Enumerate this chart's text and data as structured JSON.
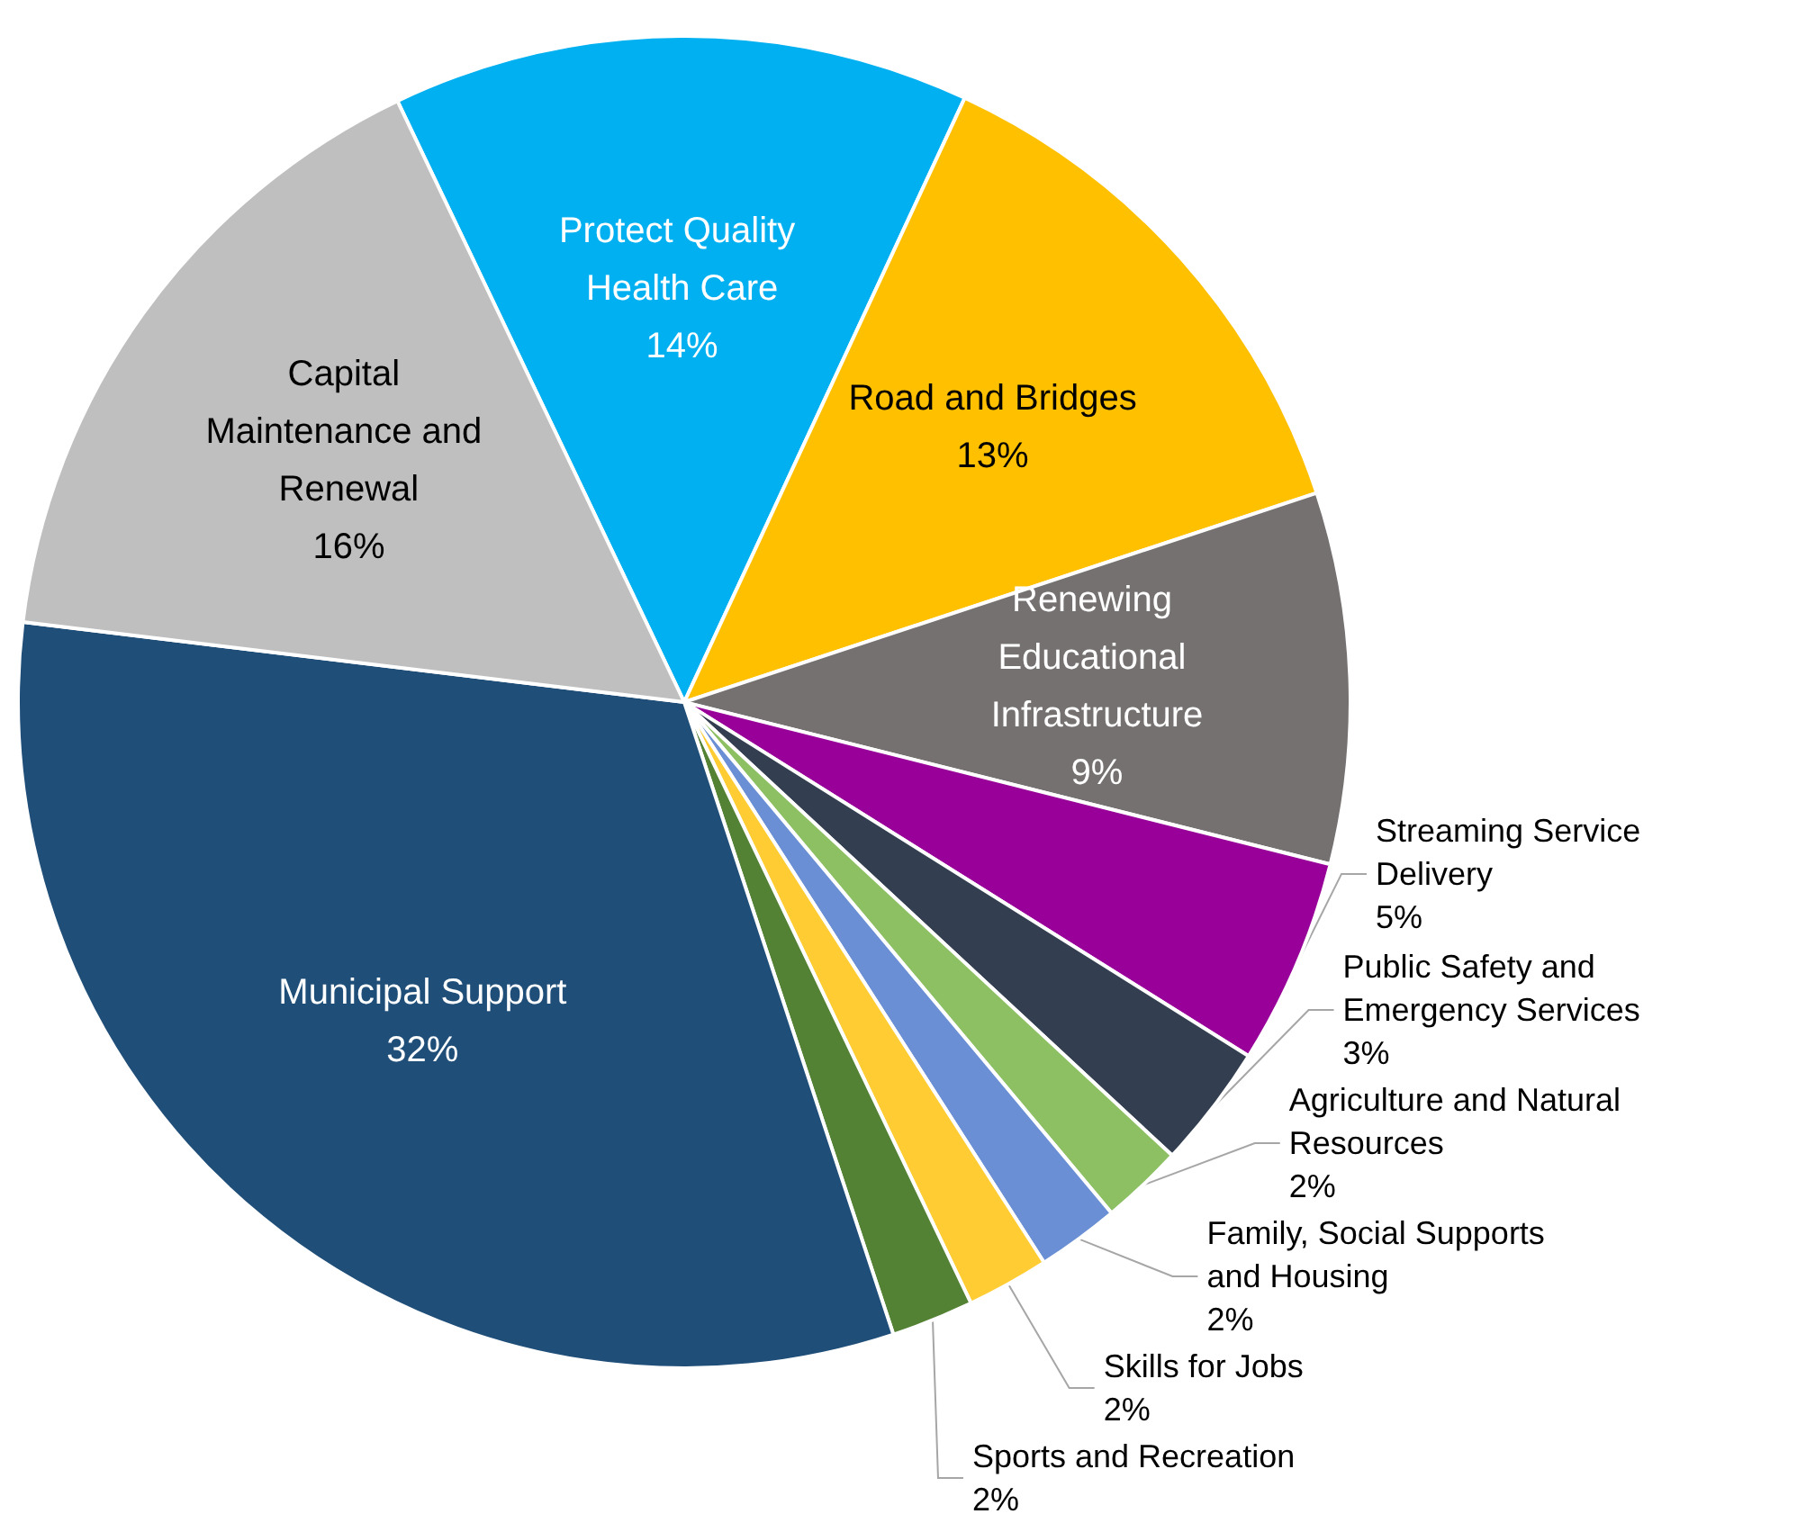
{
  "chart_data": {
    "type": "pie",
    "categories": [
      "Protect Quality Health Care",
      "Road and Bridges",
      "Renewing Educational Infrastructure",
      "Streaming Service Delivery",
      "Public Safety and Emergency Services",
      "Agriculture and Natural Resources",
      "Family, Social Supports and Housing",
      "Skills for Jobs",
      "Sports and Recreation",
      "Municipal Support",
      "Capital Maintenance and Renewal"
    ],
    "values": [
      14,
      13,
      9,
      5,
      3,
      2,
      2,
      2,
      2,
      32,
      16
    ],
    "value_labels": [
      "14%",
      "13%",
      "9%",
      "5%",
      "3%",
      "2%",
      "2%",
      "2%",
      "2%",
      "32%",
      "16%"
    ],
    "colors": [
      "#00b0f0",
      "#ffc000",
      "#767171",
      "#990099",
      "#333f50",
      "#8dc063",
      "#6a8fd4",
      "#ffcc33",
      "#548235",
      "#1f4e79",
      "#bfbfbf"
    ],
    "legend": false
  }
}
